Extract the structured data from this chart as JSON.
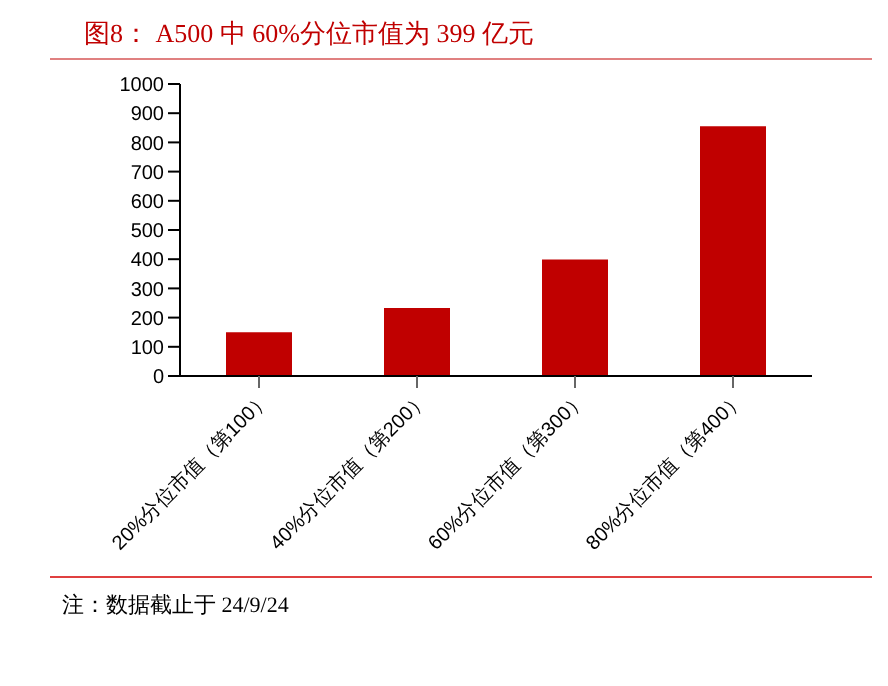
{
  "chart_data": {
    "type": "bar",
    "title": "图8：  A500 中 60%分位市值为 399 亿元",
    "categories": [
      "20%分位市值（第100）",
      "40%分位市值（第200）",
      "60%分位市值（第300）",
      "80%分位市值（第400）"
    ],
    "values": [
      150,
      233,
      399,
      855
    ],
    "color": "#c00000",
    "ylim": [
      0,
      1000
    ],
    "yticks": [
      0,
      100,
      200,
      300,
      400,
      500,
      600,
      700,
      800,
      900,
      1000
    ],
    "grid": false,
    "annotations": [
      "注：数据截止于 24/9/24"
    ]
  }
}
